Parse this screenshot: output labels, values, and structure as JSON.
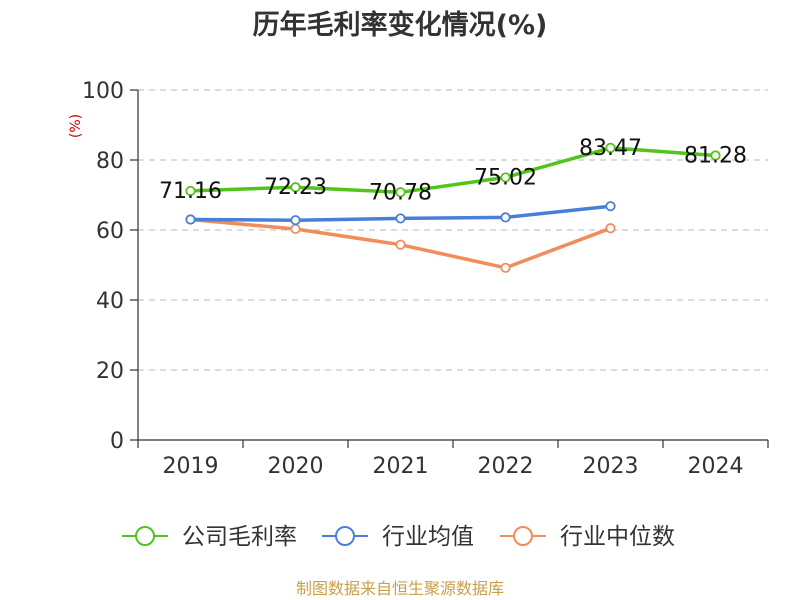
{
  "chart_data": {
    "type": "line",
    "title": "历年毛利率变化情况(%)",
    "ylabel": "(%)",
    "xlabel": "",
    "categories": [
      "2019",
      "2020",
      "2021",
      "2022",
      "2023",
      "2024"
    ],
    "ylim": [
      0,
      100
    ],
    "yticks": [
      0,
      20,
      40,
      60,
      80,
      100
    ],
    "grid": true,
    "legend_position": "bottom",
    "series": [
      {
        "name": "公司毛利率",
        "color": "#52c41a",
        "values": [
          71.16,
          72.23,
          70.78,
          75.02,
          83.47,
          81.28
        ],
        "labels": [
          "71.16",
          "72.23",
          "70.78",
          "75.02",
          "83.47",
          "81.28"
        ]
      },
      {
        "name": "行业均值",
        "color": "#4a7fd8",
        "values": [
          63.0,
          62.8,
          63.3,
          63.6,
          66.8,
          null
        ]
      },
      {
        "name": "行业中位数",
        "color": "#f28c5a",
        "values": [
          63.0,
          60.3,
          55.8,
          49.2,
          60.5,
          null
        ]
      }
    ]
  },
  "source": "制图数据来自恒生聚源数据库"
}
